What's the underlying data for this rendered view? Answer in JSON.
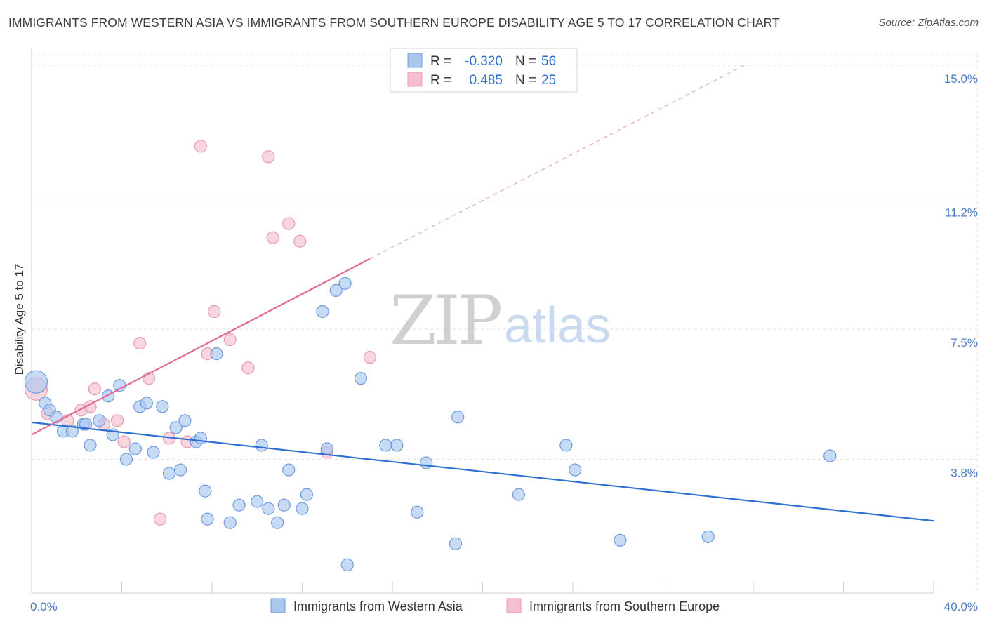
{
  "title": "IMMIGRANTS FROM WESTERN ASIA VS IMMIGRANTS FROM SOUTHERN EUROPE DISABILITY AGE 5 TO 17 CORRELATION CHART",
  "source": "Source: ZipAtlas.com",
  "watermark": {
    "zip": "ZIP",
    "atlas": "atlas"
  },
  "colors": {
    "blue": "#2a6fd1",
    "pink": "#e06a93",
    "blue_fill": "#aac8ee",
    "pink_fill": "#f6bfd0"
  },
  "legend": {
    "r_label": "R =",
    "n_label": "N =",
    "rows": [
      {
        "r": "-0.320",
        "n": "56"
      },
      {
        "r": "0.485",
        "n": "25"
      }
    ]
  },
  "chart_data": {
    "type": "scatter",
    "title": "IMMIGRANTS FROM WESTERN ASIA VS IMMIGRANTS FROM SOUTHERN EUROPE DISABILITY AGE 5 TO 17 CORRELATION CHART",
    "xlabel": "",
    "ylabel": "Disability Age 5 to 17",
    "xlim": [
      0,
      40
    ],
    "ylim": [
      0,
      15.5
    ],
    "x_tick_labels": [
      "0.0%",
      "40.0%"
    ],
    "y_ticks": [
      {
        "value": 3.8,
        "label": "3.8%"
      },
      {
        "value": 7.5,
        "label": "7.5%"
      },
      {
        "value": 11.2,
        "label": "11.2%"
      },
      {
        "value": 15.0,
        "label": "15.0%"
      }
    ],
    "grid": true,
    "legend_position": "top-center",
    "series": [
      {
        "name": "Immigrants from Western Asia",
        "color": "#2a6fd1",
        "points": [
          [
            0.2,
            6.0
          ],
          [
            0.6,
            5.4
          ],
          [
            0.8,
            5.2
          ],
          [
            1.1,
            5.0
          ],
          [
            1.4,
            4.6
          ],
          [
            1.8,
            4.6
          ],
          [
            2.3,
            4.8
          ],
          [
            2.4,
            4.8
          ],
          [
            2.6,
            4.2
          ],
          [
            3.0,
            4.9
          ],
          [
            3.4,
            5.6
          ],
          [
            3.6,
            4.5
          ],
          [
            3.9,
            5.9
          ],
          [
            4.2,
            3.8
          ],
          [
            4.6,
            4.1
          ],
          [
            4.8,
            5.3
          ],
          [
            5.1,
            5.4
          ],
          [
            5.4,
            4.0
          ],
          [
            5.8,
            5.3
          ],
          [
            6.1,
            3.4
          ],
          [
            6.4,
            4.7
          ],
          [
            6.6,
            3.5
          ],
          [
            6.8,
            4.9
          ],
          [
            7.3,
            4.3
          ],
          [
            7.5,
            4.4
          ],
          [
            7.7,
            2.9
          ],
          [
            7.8,
            2.1
          ],
          [
            8.2,
            6.8
          ],
          [
            8.8,
            2.0
          ],
          [
            9.2,
            2.5
          ],
          [
            10.0,
            2.6
          ],
          [
            10.2,
            4.2
          ],
          [
            10.5,
            2.4
          ],
          [
            10.9,
            2.0
          ],
          [
            11.2,
            2.5
          ],
          [
            11.4,
            3.5
          ],
          [
            12.0,
            2.4
          ],
          [
            12.2,
            2.8
          ],
          [
            12.9,
            8.0
          ],
          [
            13.1,
            4.1
          ],
          [
            13.5,
            8.6
          ],
          [
            13.9,
            8.8
          ],
          [
            14.0,
            0.8
          ],
          [
            14.6,
            6.1
          ],
          [
            15.7,
            4.2
          ],
          [
            16.2,
            4.2
          ],
          [
            17.1,
            2.3
          ],
          [
            17.5,
            3.7
          ],
          [
            18.8,
            1.4
          ],
          [
            18.9,
            5.0
          ],
          [
            21.6,
            2.8
          ],
          [
            23.7,
            4.2
          ],
          [
            24.1,
            3.5
          ],
          [
            26.1,
            1.5
          ],
          [
            30.0,
            1.6
          ],
          [
            35.4,
            3.9
          ]
        ],
        "trend": {
          "x": [
            0,
            40
          ],
          "y": [
            4.85,
            2.05
          ]
        }
      },
      {
        "name": "Immigrants from Southern Europe",
        "color": "#e06a93",
        "points": [
          [
            0.2,
            5.8
          ],
          [
            0.7,
            5.1
          ],
          [
            1.6,
            4.9
          ],
          [
            2.2,
            5.2
          ],
          [
            2.6,
            5.3
          ],
          [
            2.8,
            5.8
          ],
          [
            3.2,
            4.8
          ],
          [
            3.8,
            4.9
          ],
          [
            4.1,
            4.3
          ],
          [
            4.8,
            7.1
          ],
          [
            5.2,
            6.1
          ],
          [
            5.7,
            2.1
          ],
          [
            6.1,
            4.4
          ],
          [
            6.9,
            4.3
          ],
          [
            7.5,
            12.7
          ],
          [
            7.8,
            6.8
          ],
          [
            8.1,
            8.0
          ],
          [
            8.8,
            7.2
          ],
          [
            9.6,
            6.4
          ],
          [
            10.5,
            12.4
          ],
          [
            10.7,
            10.1
          ],
          [
            11.4,
            10.5
          ],
          [
            11.9,
            10.0
          ],
          [
            13.1,
            4.0
          ],
          [
            15.0,
            6.7
          ]
        ],
        "trend": {
          "x": [
            0,
            15
          ],
          "y": [
            4.5,
            9.5
          ]
        },
        "trend_extension": {
          "x": [
            15,
            31.6
          ],
          "y": [
            9.5,
            15.0
          ]
        }
      }
    ]
  },
  "bottom_legend": [
    "Immigrants from Western Asia",
    "Immigrants from Southern Europe"
  ]
}
